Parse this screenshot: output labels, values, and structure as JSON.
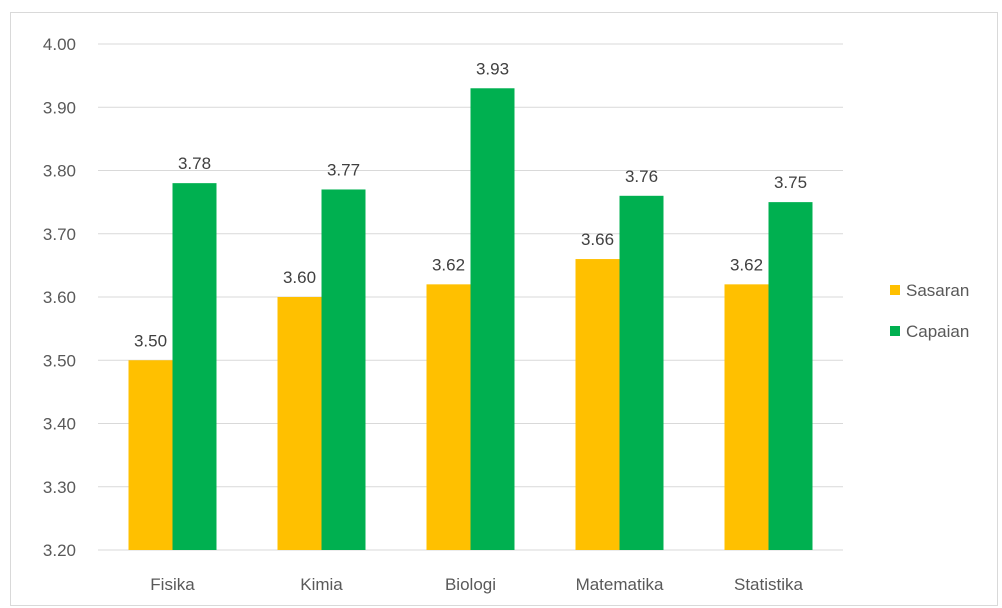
{
  "chart_data": {
    "type": "bar",
    "title": "",
    "xlabel": "",
    "ylabel": "",
    "categories": [
      "Fisika",
      "Kimia",
      "Biologi",
      "Matematika",
      "Statistika"
    ],
    "series": [
      {
        "name": "Sasaran",
        "values": [
          3.5,
          3.6,
          3.62,
          3.66,
          3.62
        ],
        "color": "#FFC000"
      },
      {
        "name": "Capaian",
        "values": [
          3.78,
          3.77,
          3.93,
          3.76,
          3.75
        ],
        "color": "#00B050"
      }
    ],
    "ylim": [
      3.2,
      4.0
    ],
    "yticks": [
      "3.20",
      "3.30",
      "3.40",
      "3.50",
      "3.60",
      "3.70",
      "3.80",
      "3.90",
      "4.00"
    ],
    "data_labels": [
      [
        "3.50",
        "3.60",
        "3.62",
        "3.66",
        "3.62"
      ],
      [
        "3.78",
        "3.77",
        "3.93",
        "3.76",
        "3.75"
      ]
    ],
    "grid": true,
    "legend_position": "right",
    "gridline_color": "#d9d9d9"
  }
}
